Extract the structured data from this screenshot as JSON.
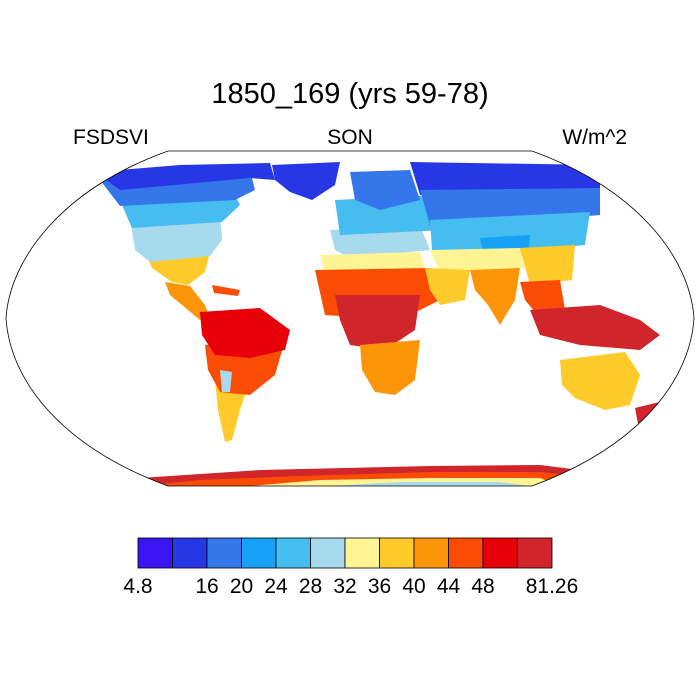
{
  "title": "1850_169 (yrs 59-78)",
  "left_label": "FSDSVI",
  "center_label": "SON",
  "right_label": "W/m^2",
  "colorbar": {
    "colors": [
      "#3a14f2",
      "#2737e6",
      "#3577ea",
      "#16a1f6",
      "#45bdf1",
      "#a8daee",
      "#fef494",
      "#fecb2b",
      "#fd9508",
      "#fb4c06",
      "#e7000a",
      "#d0262b"
    ],
    "labels": [
      "4.8",
      "",
      "16",
      "20",
      "24",
      "28",
      "32",
      "36",
      "40",
      "44",
      "48",
      "",
      "81.26"
    ]
  },
  "map": {
    "projection": "Robinson",
    "ocean_color": "#ffffff",
    "coastline_color": "#000000"
  }
}
